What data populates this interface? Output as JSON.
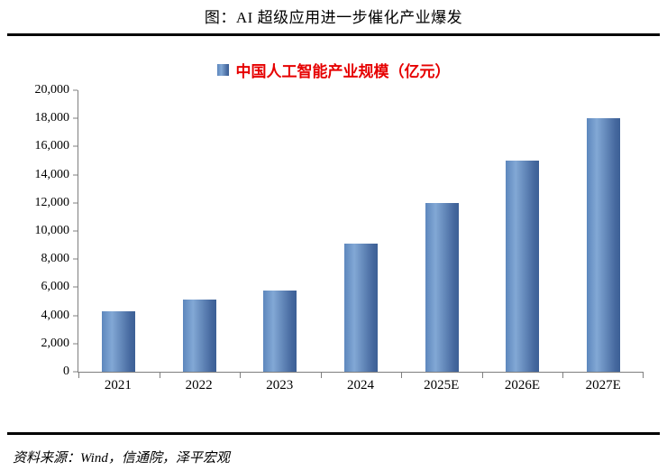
{
  "figure": {
    "title": "图：AI 超级应用进一步催化产业爆发"
  },
  "chart_data": {
    "type": "bar",
    "title": "中国人工智能产业规模（亿元）",
    "legend": "中国人工智能产业规模（亿元）",
    "legend_position": "top",
    "categories": [
      "2021",
      "2022",
      "2023",
      "2024",
      "2025E",
      "2026E",
      "2027E"
    ],
    "values": [
      4300,
      5100,
      5800,
      9100,
      12000,
      15000,
      18000
    ],
    "xlabel": "",
    "ylabel": "",
    "ylim": [
      0,
      20000
    ],
    "ytick_values": [
      0,
      2000,
      4000,
      6000,
      8000,
      10000,
      12000,
      14000,
      16000,
      18000,
      20000
    ],
    "ytick_labels": [
      "0",
      "2,000",
      "4,000",
      "6,000",
      "8,000",
      "10,000",
      "12,000",
      "14,000",
      "16,000",
      "18,000",
      "20,000"
    ],
    "grid": false,
    "bar_color": "#4f7ab3",
    "legend_text_color": "#e60000"
  },
  "footer": {
    "source": "资料来源：Wind，信通院，泽平宏观"
  }
}
